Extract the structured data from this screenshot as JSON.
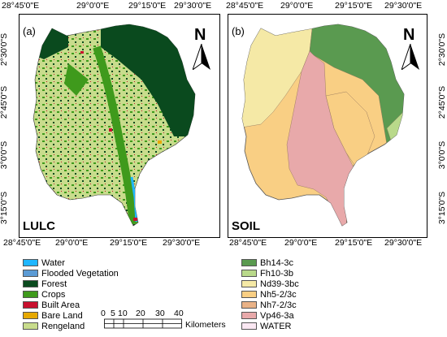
{
  "top_ticks": [
    "28°45'0\"E",
    "29°0'0\"E",
    "29°15'0\"E",
    "29°30'0\"E"
  ],
  "bottom_ticks": [
    "28°45'0\"E",
    "29°0'0\"E",
    "29°15'0\"E",
    "29°30'0\"E"
  ],
  "left_ticks": [
    "2°30'0\"S",
    "2°45'0\"S",
    "3°0'0\"S",
    "3°15'0\"S"
  ],
  "right_ticks": [
    "2°30'0\"S",
    "2°45'0\"S",
    "3°0'0\"S",
    "3°15'0\"S"
  ],
  "panels": [
    {
      "letter": "(a)",
      "name": "LULC",
      "north": "N"
    },
    {
      "letter": "(b)",
      "name": "SOIL",
      "north": "N"
    }
  ],
  "lulc_legend": [
    {
      "label": "Water",
      "color": "#1fb6ff"
    },
    {
      "label": "Flooded Vegetation",
      "color": "#5b9bd5"
    },
    {
      "label": "Forest",
      "color": "#0a4a1e"
    },
    {
      "label": "Crops",
      "color": "#3f9a1c"
    },
    {
      "label": "Built Area",
      "color": "#c8102e"
    },
    {
      "label": "Bare Land",
      "color": "#e6a800"
    },
    {
      "label": "Rengeland",
      "color": "#c8dc8c"
    }
  ],
  "soil_legend": [
    {
      "label": "Bh14-3c",
      "color": "#5a9a50"
    },
    {
      "label": "Fh10-3b",
      "color": "#b9d98a"
    },
    {
      "label": "Nd39-3bc",
      "color": "#f5e9a6"
    },
    {
      "label": "Nh5-2/3c",
      "color": "#f9cf84"
    },
    {
      "label": "Nh7-2/3c",
      "color": "#e9b287"
    },
    {
      "label": "Vp46-3a",
      "color": "#e8a9aa"
    },
    {
      "label": "WATER",
      "color": "#fbe8f3"
    }
  ],
  "scalebar": {
    "ticks": [
      "0",
      "5",
      "10",
      "20",
      "30",
      "40"
    ],
    "unit": "Kilometers"
  }
}
